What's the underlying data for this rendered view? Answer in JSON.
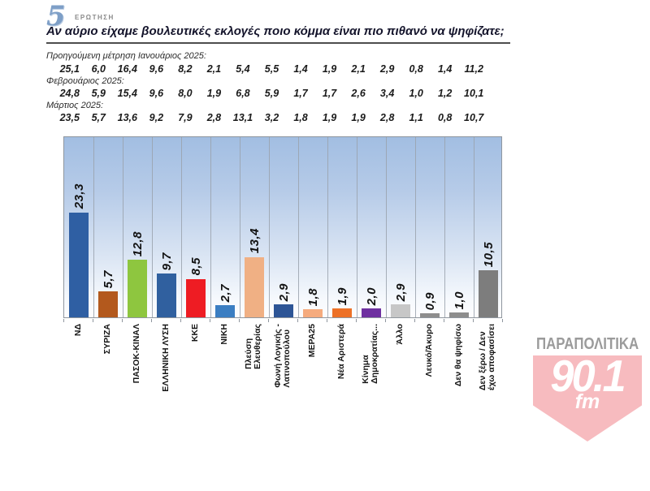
{
  "header": {
    "question_number": "5",
    "question_word": "ΕΡΩΤΗΣΗ",
    "title": "Αν αύριο είχαμε βουλευτικές εκλογές ποιο κόμμα είναι πιο πιθανό να ψηφίζατε;"
  },
  "previous_measurements": [
    {
      "label": "Προηγούμενη μέτρηση Ιανουάριος 2025:",
      "values": [
        "25,1",
        "6,0",
        "16,4",
        "9,6",
        "8,2",
        "2,1",
        "5,4",
        "5,5",
        "1,4",
        "1,9",
        "2,1",
        "2,9",
        "0,8",
        "1,4",
        "11,2"
      ]
    },
    {
      "label": "Φεβρουάριος 2025:",
      "values": [
        "24,8",
        "5,9",
        "15,4",
        "9,6",
        "8,0",
        "1,9",
        "6,8",
        "5,9",
        "1,7",
        "1,7",
        "2,6",
        "3,4",
        "1,0",
        "1,2",
        "10,1"
      ]
    },
    {
      "label": "Μάρτιος 2025:",
      "values": [
        "23,5",
        "5,7",
        "13,6",
        "9,2",
        "7,9",
        "2,8",
        "13,1",
        "3,2",
        "1,8",
        "1,9",
        "1,9",
        "2,8",
        "1,1",
        "0,8",
        "10,7"
      ]
    }
  ],
  "chart_data": {
    "type": "bar",
    "title": "Αν αύριο είχαμε βουλευτικές εκλογές ποιο κόμμα είναι πιο πιθανό να ψηφίζατε;",
    "categories": [
      "ΝΔ",
      "ΣΥΡΙΖΑ",
      "ΠΑΣΟΚ-ΚΙΝΑΛ",
      "ΕΛΛΗΝΙΚΗ ΛΥΣΗ",
      "ΚΚΕ",
      "ΝΙΚΗ",
      "Πλεύση Ελευθερίας",
      "Φωνή Λογικής - Λατινοπούλου",
      "ΜΕΡΑ25",
      "Νέα Αριστερά",
      "Κίνημα Δημοκρατίας...",
      "Άλλο",
      "Λευκό/Άκυρο",
      "Δεν θα ψηφίσω",
      "Δεν ξέρω / Δεν έχω αποφασίσει"
    ],
    "categories_display": [
      "ΝΔ",
      "ΣΥΡΙΖΑ",
      "ΠΑΣΟΚ-ΚΙΝΑΛ",
      "ΕΛΛΗΝΙΚΗ ΛΥΣΗ",
      "ΚΚΕ",
      "ΝΙΚΗ",
      "Πλεύση\nΕλευθερίας",
      "Φωνή Λογικής -\nΛατινοπούλου",
      "ΜΕΡΑ25",
      "Νέα Αριστερά",
      "Κίνημα\nΔημοκρατίας...",
      "Άλλο",
      "Λευκό/Άκυρο",
      "Δεν θα ψηφίσω",
      "Δεν ξέρω / Δεν\nέχω αποφασίσει"
    ],
    "values": [
      23.3,
      5.7,
      12.8,
      9.7,
      8.5,
      2.7,
      13.4,
      2.9,
      1.8,
      1.9,
      2.0,
      2.9,
      0.9,
      1.0,
      10.5
    ],
    "value_labels": [
      "23,3",
      "5,7",
      "12,8",
      "9,7",
      "8,5",
      "2,7",
      "13,4",
      "2,9",
      "1,8",
      "1,9",
      "2,0",
      "2,9",
      "0,9",
      "1,0",
      "10,5"
    ],
    "bar_colors": [
      "#2f5fa3",
      "#b3591d",
      "#8ec63f",
      "#30609f",
      "#ee1c23",
      "#3b7ec2",
      "#f0b084",
      "#2d5596",
      "#f5ab7e",
      "#ed7127",
      "#6e30a0",
      "#c7c7c7",
      "#8d8d8d",
      "#8d8d8d",
      "#7d7d7d"
    ],
    "xlabel": "",
    "ylabel": "",
    "ylim": [
      0,
      40
    ],
    "grid": "vertical-category-separators",
    "legend": "none",
    "value_label_rotation": -90,
    "category_label_rotation": -90
  },
  "logo": {
    "brand": "ΠΑΡΑΠΟΛΙΤΙΚΑ",
    "frequency": "90.1",
    "fm": "fm",
    "brand_color": "#9b9b9b",
    "shield_color": "#f7bbbf"
  }
}
